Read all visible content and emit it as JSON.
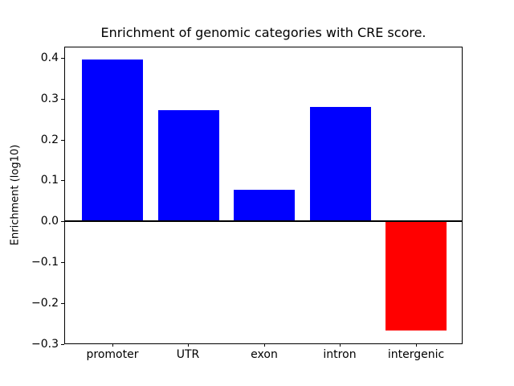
{
  "chart_data": {
    "type": "bar",
    "title": "Enrichment of genomic categories with CRE score.",
    "xlabel": "",
    "ylabel": "Enrichment (log10)",
    "categories": [
      "promoter",
      "UTR",
      "exon",
      "intron",
      "intergenic"
    ],
    "values": [
      0.395,
      0.272,
      0.078,
      0.279,
      -0.268
    ],
    "bar_colors": [
      "#0000ff",
      "#0000ff",
      "#0000ff",
      "#0000ff",
      "#ff0000"
    ],
    "positive_color": "#0000ff",
    "negative_color": "#ff0000",
    "ylim": [
      -0.299,
      0.428
    ],
    "yticks": [
      0.4,
      0.3,
      0.2,
      0.1,
      0.0,
      -0.1,
      -0.2,
      -0.3
    ],
    "ytick_labels": [
      "0.4",
      "0.3",
      "0.2",
      "0.1",
      "0.0",
      "−0.1",
      "−0.2",
      "−0.3"
    ],
    "zero_line": true,
    "grid": false,
    "legend_position": "none",
    "frame_color": "#000000",
    "background_color": "#ffffff"
  }
}
